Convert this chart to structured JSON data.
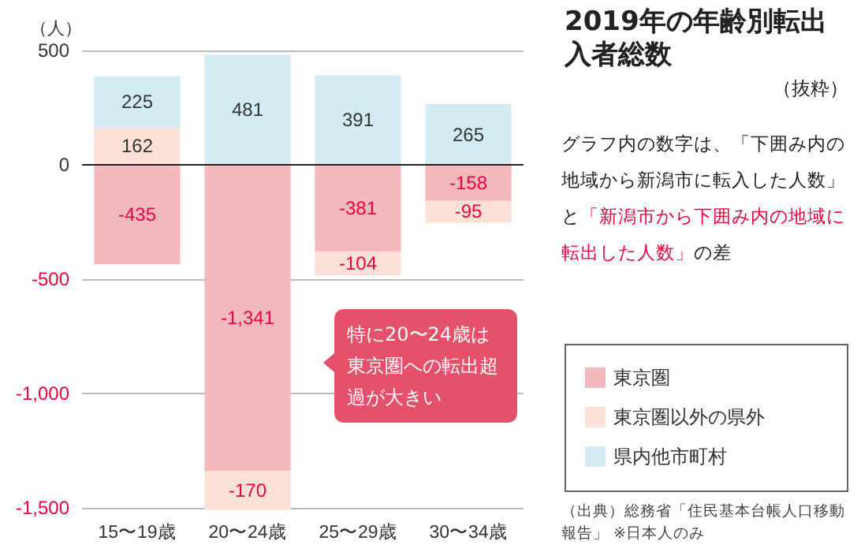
{
  "chart_data": {
    "type": "bar",
    "title": "2019年の年齢別転出入者総数",
    "subtitle": "（抜粋）",
    "ylabel": "（人）",
    "categories": [
      "15〜19歳",
      "20〜24歳",
      "25〜29歳",
      "30〜34歳"
    ],
    "series": [
      {
        "name": "東京圏",
        "color": "#f4b9bd",
        "values": [
          -435,
          -1341,
          -381,
          -158
        ],
        "value_labels": [
          "-435",
          "-1,341",
          "-381",
          "-158"
        ]
      },
      {
        "name": "東京圏以外の県外",
        "color": "#fde1d8",
        "values": [
          162,
          -170,
          -104,
          -95
        ],
        "value_labels": [
          "162",
          "-170",
          "-104",
          "-95"
        ]
      },
      {
        "name": "県内他市町村",
        "color": "#d3ecf4",
        "values": [
          225,
          481,
          391,
          265
        ],
        "value_labels": [
          "225",
          "481",
          "391",
          "265"
        ]
      }
    ],
    "stacked": true,
    "ylim": [
      -1515,
      500
    ],
    "yticks": [
      500,
      0,
      -500,
      {
        "value": -1000,
        "label": "-1,000"
      },
      {
        "value": -1500,
        "label": "-1,500"
      }
    ],
    "grid": "y",
    "legend": "right",
    "annotations": [
      "特に20〜24歳は東京圏への転出超過が大きい",
      "グラフ内の数字は、「下囲み内の地域から新潟市に転入した人数」と",
      "「新潟市から下囲み内の地域に転出した人数」",
      "の差",
      "（出典）総務省「住民基本台帳人口移動報告」 ※日本人のみ"
    ]
  }
}
